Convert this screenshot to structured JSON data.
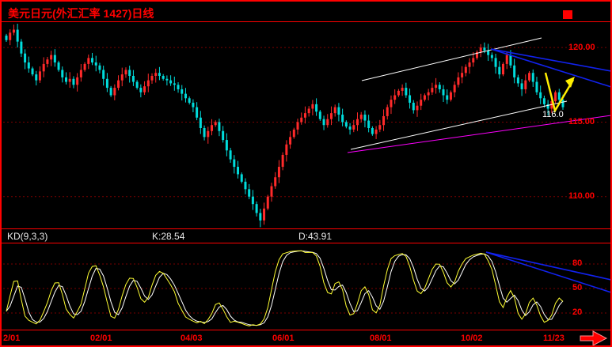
{
  "window": {
    "title": "美元日元(外汇汇率 1427)日线"
  },
  "colors": {
    "background": "#000000",
    "frame": "#ff0000",
    "up_candle": "#ff2a2a",
    "down_candle": "#00dcdc",
    "k_line": "#ffff33",
    "d_line": "#ffffff",
    "channel_line": "#ffffff",
    "support_line": "#ff00ff",
    "trend_blue": "#1122ee",
    "arrow_yellow": "#ffee00",
    "axis_text": "#ff0000",
    "grid_red": "#7a0000"
  },
  "main_chart": {
    "y_axis_labels": [
      "120.00",
      "115.00",
      "110.00"
    ],
    "price_annotation": "116.0"
  },
  "kd_panel": {
    "indicator_label": "KD(9,3,3)",
    "k_label": "K:28.54",
    "d_label": "D:43.91",
    "y_axis_labels": [
      "80",
      "50",
      "20"
    ]
  },
  "x_axis_labels": [
    "2/01",
    "02/01",
    "04/03",
    "06/01",
    "08/01",
    "10/02",
    "11/23"
  ],
  "chart_data": {
    "type": "candlestick",
    "title": "USD/JPY daily with KD(9,3,3) stochastic",
    "price_axis": {
      "top_price": 121.6,
      "bottom_price": 107.6,
      "gridlines": [
        120,
        115,
        110
      ]
    },
    "x_tick_labels": [
      "2/01",
      "02/01",
      "04/03",
      "06/01",
      "08/01",
      "10/02",
      "11/23"
    ],
    "closes": [
      120.5,
      121.0,
      121.2,
      120.4,
      119.6,
      119.0,
      118.6,
      118.2,
      117.8,
      118.4,
      118.9,
      119.2,
      119.5,
      119.0,
      118.5,
      118.0,
      117.7,
      117.9,
      117.5,
      118.0,
      118.5,
      118.9,
      119.3,
      119.0,
      118.8,
      118.5,
      117.9,
      117.3,
      116.8,
      117.3,
      117.8,
      118.2,
      118.5,
      118.1,
      117.7,
      117.3,
      117.0,
      117.4,
      117.8,
      118.1,
      118.3,
      118.1,
      117.9,
      117.8,
      117.6,
      117.5,
      117.2,
      116.9,
      116.6,
      116.3,
      116.0,
      115.3,
      114.6,
      114.0,
      114.4,
      114.8,
      115.0,
      114.4,
      113.8,
      113.1,
      112.5,
      112.0,
      111.5,
      111.0,
      110.5,
      110.0,
      109.5,
      108.9,
      108.4,
      109.2,
      110.0,
      110.7,
      111.3,
      112.0,
      112.8,
      113.5,
      114.0,
      114.5,
      115.0,
      115.3,
      115.6,
      115.9,
      116.2,
      115.7,
      115.2,
      114.8,
      115.2,
      115.6,
      116.0,
      115.5,
      115.0,
      114.7,
      114.5,
      114.8,
      115.2,
      115.5,
      115.1,
      114.6,
      114.2,
      114.5,
      114.8,
      115.4,
      116.0,
      116.5,
      116.8,
      117.1,
      117.3,
      116.8,
      116.3,
      115.8,
      116.1,
      116.5,
      116.8,
      117.0,
      117.3,
      117.5,
      117.2,
      116.8,
      116.5,
      117.0,
      117.5,
      118.0,
      118.3,
      118.7,
      119.0,
      119.3,
      119.7,
      120.0,
      119.8,
      119.5,
      119.3,
      118.7,
      118.2,
      118.9,
      119.5,
      118.8,
      118.0,
      117.6,
      117.2,
      117.8,
      118.3,
      117.7,
      117.0,
      116.6,
      116.2,
      115.9,
      116.4,
      117.0,
      116.5,
      116.0
    ],
    "last_price": 116.0,
    "indicator": {
      "type": "stochastic_kd",
      "params": [
        9,
        3,
        3
      ],
      "k_current": 28.54,
      "d_current": 43.91,
      "axis_levels": [
        80,
        50,
        20
      ]
    },
    "annotations": {
      "channel_upper": [
        455,
        100,
        682,
        46
      ],
      "channel_lower": [
        441,
        187,
        714,
        126
      ],
      "support_magenta": [
        437,
        191,
        770,
        144
      ],
      "trend_blue": [
        [
          618,
          60,
          770,
          88
        ],
        [
          618,
          60,
          770,
          108
        ]
      ],
      "kd_trend_blue": [
        [
          612,
          317,
          770,
          352
        ],
        [
          612,
          317,
          770,
          368
        ]
      ],
      "arrow_path": [
        [
          687,
          90
        ],
        [
          699,
          138
        ],
        [
          722,
          99
        ]
      ],
      "arrow_head": [
        [
          724,
          95
        ],
        [
          712,
          100
        ],
        [
          719,
          109
        ]
      ]
    }
  }
}
